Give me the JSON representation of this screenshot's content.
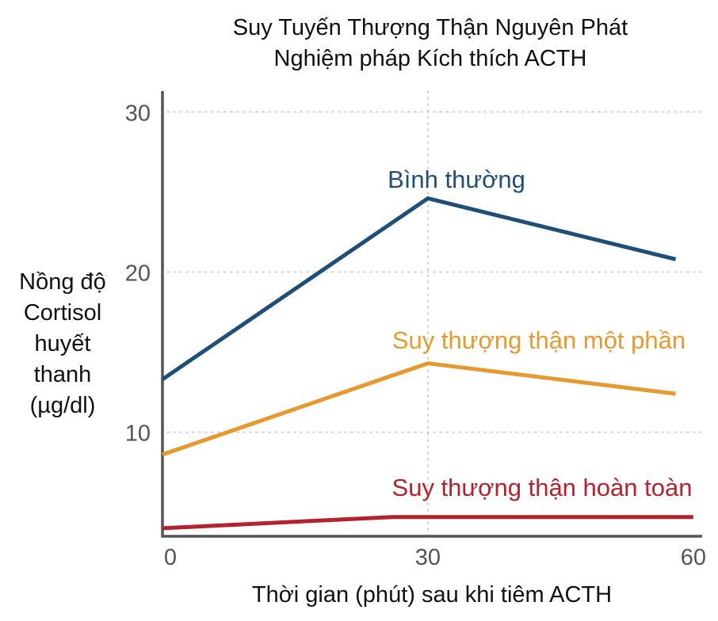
{
  "chart_data": {
    "type": "line",
    "title_lines": [
      "Suy Tuyến Thượng Thận Nguyên Phát",
      "Nghiệm pháp Kích thích ACTH"
    ],
    "xlabel": "Thời gian (phút) sau khi tiêm ACTH",
    "ylabel_lines": [
      "Nồng độ",
      "Cortisol",
      "huyết",
      "thanh",
      "(µg/dl)"
    ],
    "x_ticks": [
      0,
      30,
      60
    ],
    "y_ticks": [
      10,
      20,
      30
    ],
    "xlim": [
      0,
      61
    ],
    "ylim": [
      3.5,
      31.3
    ],
    "grid": {
      "horizontal": true,
      "vertical_at": [
        30
      ]
    },
    "series": [
      {
        "name": "Bình thường",
        "color": "#1f4e79",
        "x": [
          0,
          30,
          58
        ],
        "values": [
          13.3,
          24.6,
          20.8
        ]
      },
      {
        "name": "Suy thượng thận một phần",
        "color": "#e69a2e",
        "x": [
          0,
          30,
          58
        ],
        "values": [
          8.6,
          14.3,
          12.4
        ]
      },
      {
        "name": "Suy thượng thận hoàn toàn",
        "color": "#b5222e",
        "x": [
          0,
          26,
          60
        ],
        "values": [
          4.0,
          4.7,
          4.7
        ]
      }
    ]
  }
}
